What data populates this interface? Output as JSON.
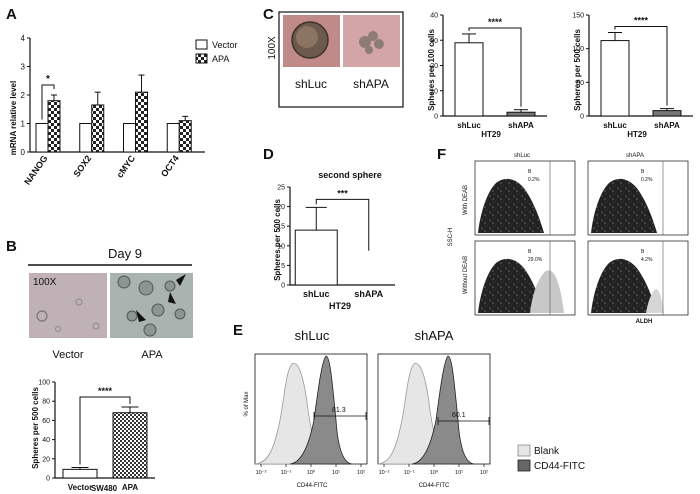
{
  "figure": {
    "panel_labels": {
      "A": "A",
      "B": "B",
      "C": "C",
      "D": "D",
      "E": "E",
      "F": "F"
    }
  },
  "chart_data": [
    {
      "id": "A",
      "type": "bar",
      "ylabel": "mRNA relative level",
      "categories": [
        "NANOG",
        "SOX2",
        "cMYC",
        "OCT4"
      ],
      "series": [
        {
          "name": "Vector",
          "values": [
            1.0,
            1.0,
            1.0,
            1.0
          ],
          "errors": [
            0,
            0,
            0,
            0
          ],
          "pattern": "white"
        },
        {
          "name": "APA",
          "values": [
            1.8,
            1.65,
            2.1,
            1.1
          ],
          "errors": [
            0.2,
            0.45,
            0.6,
            0.15
          ],
          "pattern": "checker"
        }
      ],
      "ylim": [
        0,
        4
      ],
      "yticks": [
        "0",
        "1",
        "2",
        "3",
        "4"
      ],
      "significance": [
        {
          "label": "*",
          "between": [
            "Vector",
            "APA"
          ],
          "category": "NANOG"
        }
      ],
      "legend": [
        "Vector",
        "APA"
      ]
    },
    {
      "id": "B",
      "type": "bar",
      "title": "Day 9",
      "image_labels": {
        "magnification": "100X",
        "left": "Vector",
        "right": "APA"
      },
      "ylabel": "Spheres per 500 cells",
      "xlabel": "SW480",
      "categories": [
        "Vector",
        "APA"
      ],
      "values": [
        9,
        68
      ],
      "errors": [
        2,
        6
      ],
      "ylim": [
        0,
        100
      ],
      "yticks": [
        "0",
        "20",
        "40",
        "60",
        "80",
        "100"
      ],
      "significance": [
        {
          "label": "****",
          "between": [
            "Vector",
            "APA"
          ]
        }
      ]
    },
    {
      "id": "C1",
      "type": "bar",
      "image_labels": {
        "magnification": "100X",
        "left": "shLuc",
        "right": "shAPA"
      },
      "ylabel": "Spheres per 100 cells",
      "xlabel": "HT29",
      "categories": [
        "shLuc",
        "shAPA"
      ],
      "values": [
        29,
        1.5
      ],
      "errors": [
        3.5,
        1.0
      ],
      "ylim": [
        0,
        40
      ],
      "yticks": [
        "0",
        "10",
        "20",
        "30",
        "40"
      ],
      "significance": [
        {
          "label": "****",
          "between": [
            "shLuc",
            "shAPA"
          ]
        }
      ]
    },
    {
      "id": "C2",
      "type": "bar",
      "ylabel": "Spheres per 500 cells",
      "xlabel": "HT29",
      "categories": [
        "shLuc",
        "shAPA"
      ],
      "values": [
        112,
        8
      ],
      "errors": [
        12,
        3
      ],
      "ylim": [
        0,
        150
      ],
      "yticks": [
        "0",
        "50",
        "100",
        "150"
      ],
      "significance": [
        {
          "label": "****",
          "between": [
            "shLuc",
            "shAPA"
          ]
        }
      ]
    },
    {
      "id": "D",
      "type": "bar",
      "title": "second sphere",
      "ylabel": "Spheres per 500 cells",
      "xlabel": "HT29",
      "categories": [
        "shLuc",
        "shAPA"
      ],
      "values": [
        14,
        0
      ],
      "errors": [
        5.8,
        0
      ],
      "ylim": [
        0,
        25
      ],
      "yticks": [
        "0",
        "5",
        "10",
        "15",
        "20",
        "25"
      ],
      "significance": [
        {
          "label": "***",
          "between": [
            "shLuc",
            "shAPA"
          ]
        }
      ]
    },
    {
      "id": "E",
      "type": "histogram",
      "titles": [
        "shLuc",
        "shAPA"
      ],
      "ylabel": "% of Max",
      "xlabel": "CD44-FITC",
      "xticks": [
        "10⁻²",
        "10⁻¹",
        "10⁰",
        "10¹",
        "10²"
      ],
      "gate_values": [
        "81.3",
        "60.1"
      ],
      "legend": [
        "Blank",
        "CD44-FITC"
      ]
    },
    {
      "id": "F",
      "type": "scatter",
      "columns": [
        "shLuc",
        "shAPA"
      ],
      "rows": [
        "With DEAB",
        "Without DEAB"
      ],
      "ylabel": "SSC-H",
      "xlabel": "ALDH",
      "gate_name": "B",
      "gate_values": [
        [
          "0.2%",
          "0.2%"
        ],
        [
          "29.0%",
          "4.2%"
        ]
      ]
    }
  ]
}
